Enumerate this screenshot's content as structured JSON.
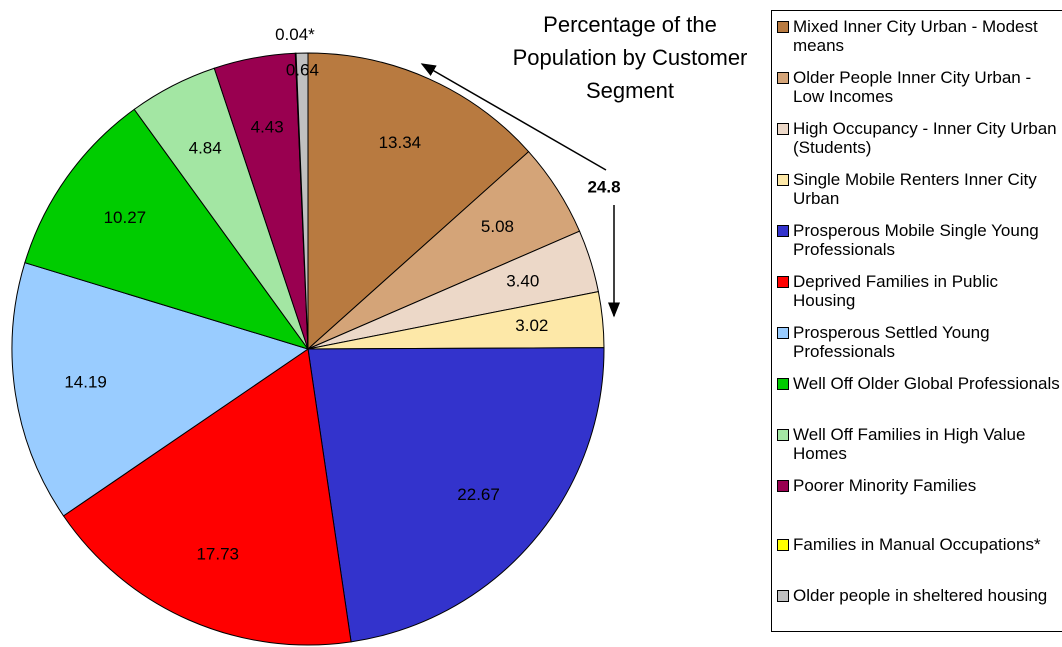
{
  "chart_data": {
    "type": "pie",
    "title": "Percentage of the Population by Customer Segment",
    "annotation": "24.8",
    "categories": [
      "Mixed Inner City Urban - Modest means",
      "Older People Inner City Urban - Low Incomes",
      "High Occupancy - Inner City Urban (Students)",
      "Single Mobile Renters Inner City Urban",
      "Prosperous Mobile Single Young Professionals",
      "Deprived Families in Public Housing",
      "Prosperous Settled Young Professionals",
      "Well Off Older Global Professionals",
      "Well Off Families in High Value Homes",
      "Poorer Minority Families",
      "Families in Manual Occupations*",
      "Older people in sheltered housing"
    ],
    "values": [
      13.34,
      5.08,
      3.4,
      3.02,
      22.67,
      17.73,
      14.19,
      10.27,
      4.84,
      4.43,
      0.04,
      0.64
    ],
    "value_labels": [
      "13.34",
      "5.08",
      "3.40",
      "3.02",
      "22.67",
      "17.73",
      "14.19",
      "10.27",
      "4.84",
      "4.43",
      "0.04*",
      "0.64"
    ],
    "colors": [
      "#b87a40",
      "#d4a478",
      "#ecd8c8",
      "#fde8a8",
      "#3333cc",
      "#ff0000",
      "#99ccff",
      "#00cc00",
      "#a3e6a3",
      "#990050",
      "#ffff00",
      "#c0c0c0"
    ],
    "legend": "right"
  }
}
